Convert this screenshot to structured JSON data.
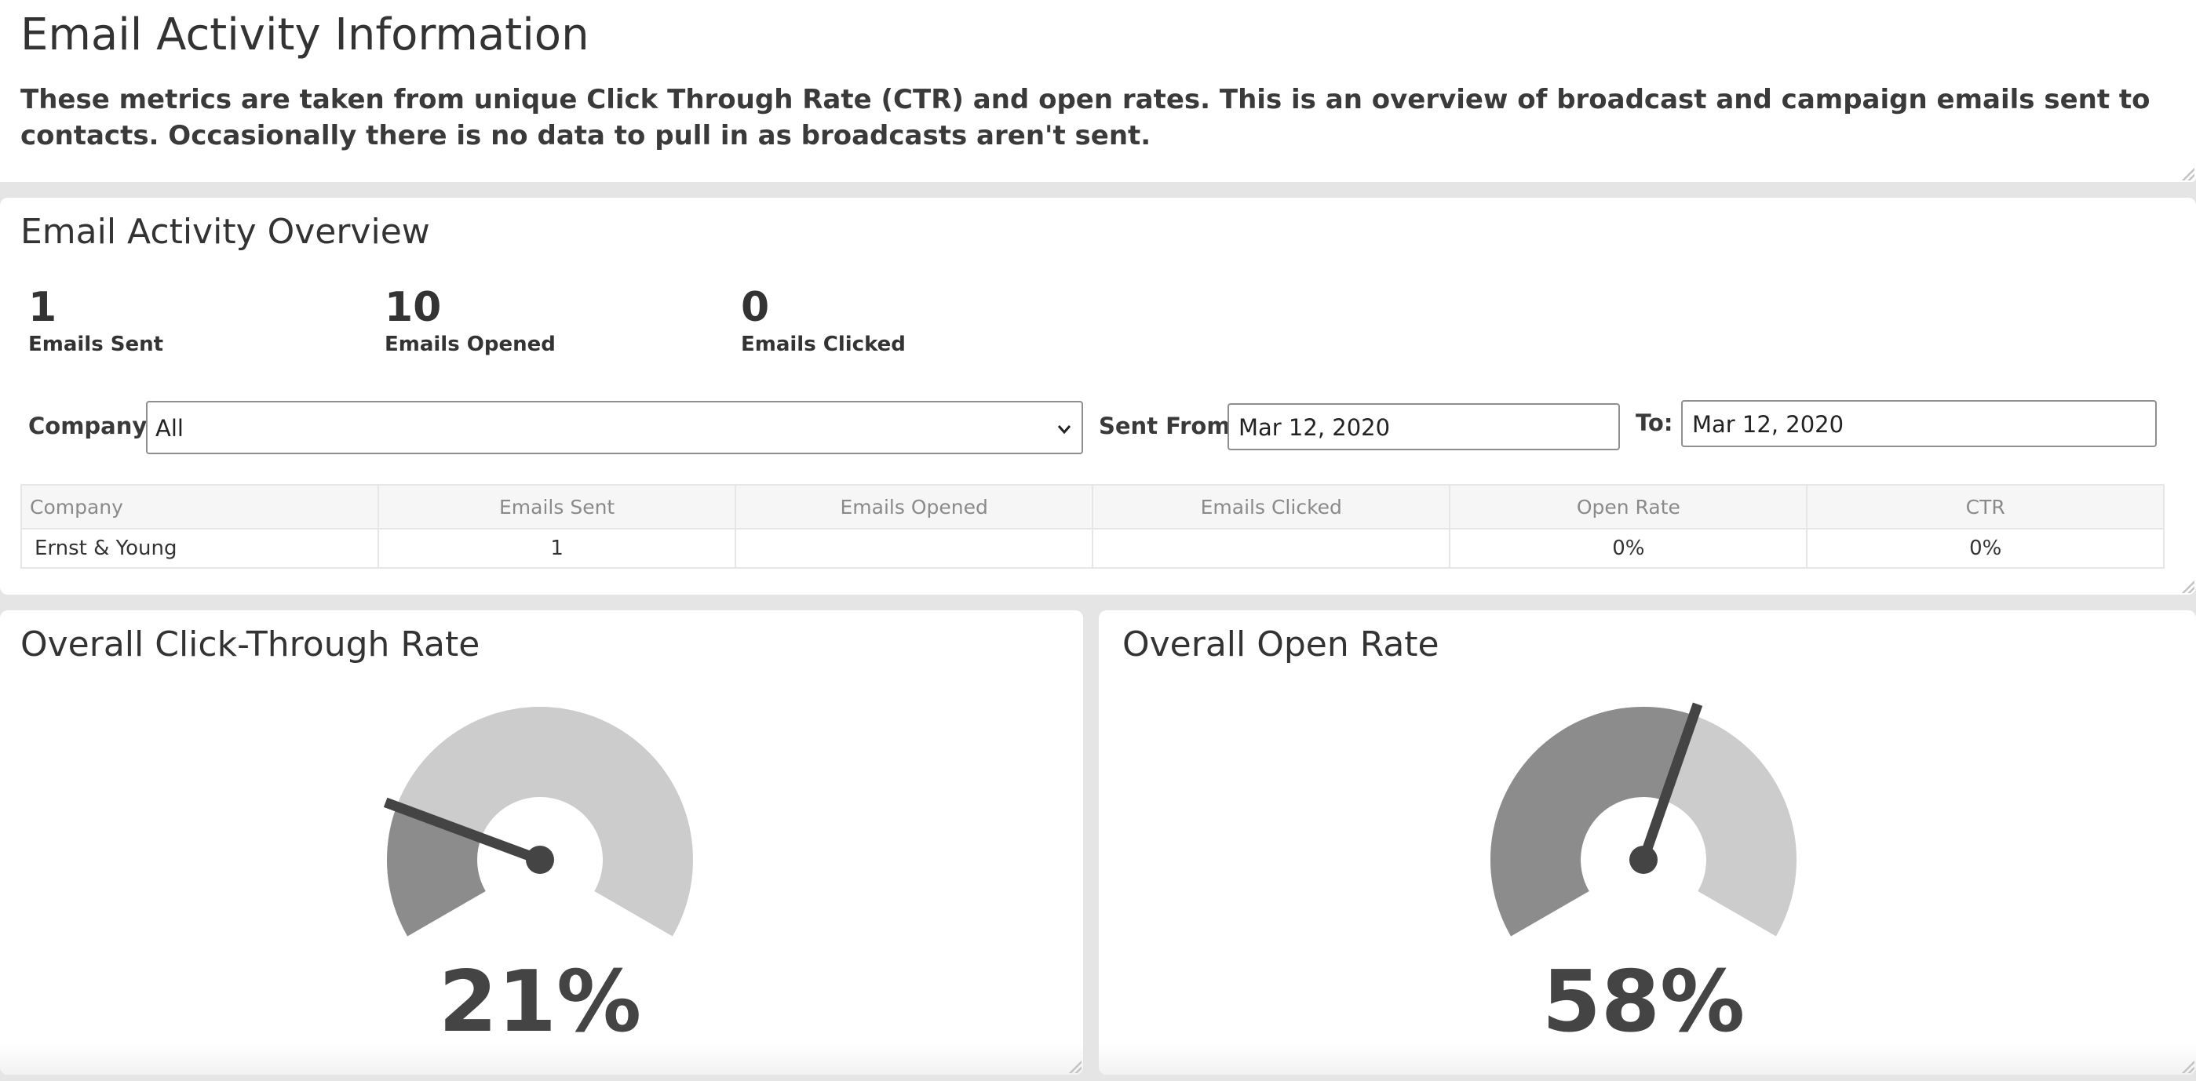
{
  "info": {
    "title": "Email Activity Information",
    "description": "These metrics are taken from unique Click Through Rate (CTR) and open rates. This is an overview of broadcast and campaign emails sent to contacts. Occasionally there is no data to pull in as broadcasts aren't sent."
  },
  "overview": {
    "title": "Email Activity Overview",
    "stats": [
      {
        "value": "1",
        "label": "Emails Sent"
      },
      {
        "value": "10",
        "label": "Emails Opened"
      },
      {
        "value": "0",
        "label": "Emails Clicked"
      }
    ],
    "filters": {
      "company_label": "Company:",
      "company_value": "All",
      "sent_from_label": "Sent From:",
      "sent_from_value": "Mar 12, 2020",
      "to_label": "To:",
      "to_value": "Mar 12, 2020"
    },
    "table": {
      "headers": [
        "Company",
        "Emails Sent",
        "Emails Opened",
        "Emails Clicked",
        "Open Rate",
        "CTR"
      ],
      "rows": [
        [
          "Ernst & Young",
          "1",
          "",
          "",
          "0%",
          "0%"
        ]
      ]
    }
  },
  "gauges": {
    "ctr": {
      "title": "Overall Click-Through Rate",
      "value_text": "21%",
      "fraction": 0.21
    },
    "open": {
      "title": "Overall Open Rate",
      "value_text": "58%",
      "fraction": 0.58
    },
    "colors": {
      "filled": "#8c8c8c",
      "empty": "#cccccc",
      "needle": "#444444"
    }
  }
}
